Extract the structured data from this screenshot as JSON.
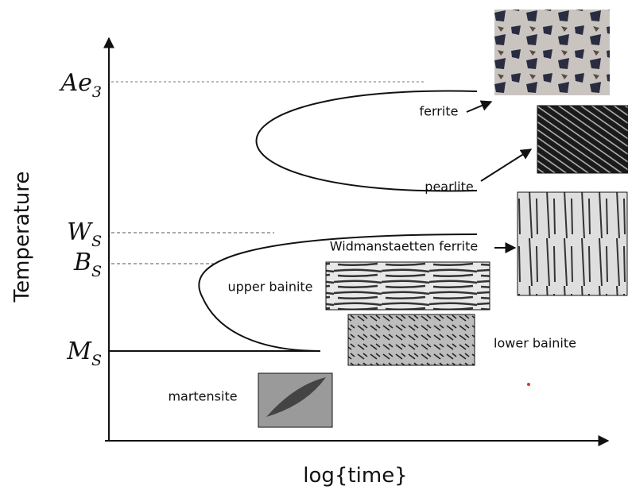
{
  "axes": {
    "y_label": "Temperature",
    "x_label": "log{time}"
  },
  "levels": [
    {
      "base": "Ae",
      "sub": "3"
    },
    {
      "base": "W",
      "sub": "S"
    },
    {
      "base": "B",
      "sub": "S"
    },
    {
      "base": "M",
      "sub": "S"
    }
  ],
  "phases": [
    "ferrite",
    "pearlite",
    "Widmanstaetten ferrite",
    "upper bainite",
    "lower bainite",
    "martensite"
  ]
}
